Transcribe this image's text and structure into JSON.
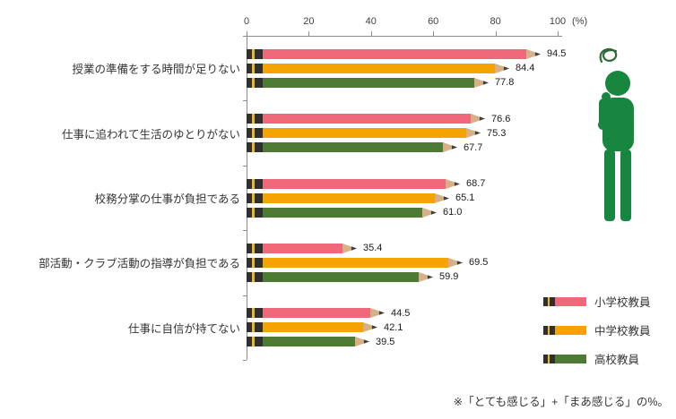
{
  "chart_data": {
    "type": "bar",
    "orientation": "horizontal",
    "title": "",
    "categories": [
      "授業の準備をする時間が足りない",
      "仕事に追われて生活のゆとりがない",
      "校務分掌の仕事が負担である",
      "部活動・クラブ活動の指導が負担である",
      "仕事に自信が持てない"
    ],
    "series": [
      {
        "name": "小学校教員",
        "color": "#ef697a",
        "values": [
          94.5,
          76.6,
          68.7,
          35.4,
          44.5
        ]
      },
      {
        "name": "中学校教員",
        "color": "#f5a300",
        "values": [
          84.4,
          75.3,
          65.1,
          69.5,
          42.1
        ]
      },
      {
        "name": "高校教員",
        "color": "#4e7b34",
        "values": [
          77.8,
          67.7,
          61.0,
          59.9,
          39.5
        ]
      }
    ],
    "xlim": [
      0,
      100
    ],
    "x_ticks": [
      0,
      20,
      40,
      60,
      80,
      100
    ],
    "x_unit_label": "(%)",
    "legend_position": "bottom-right",
    "grid": false,
    "bar_style": "pencil",
    "pencil_colors": {
      "eraser": "#2f2f2f",
      "band": "#edb91f",
      "tip_wood": "#d7b088",
      "tip_lead": "#3f3f3f"
    },
    "footnote": "※「とても感じる」+「まあ感じる」の%。"
  },
  "decor": {
    "person_icon": "thinking-person-icon",
    "person_color": "#17863e"
  }
}
